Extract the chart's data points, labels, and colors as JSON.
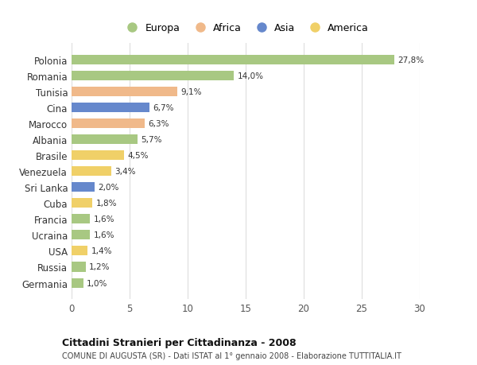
{
  "categories": [
    "Polonia",
    "Romania",
    "Tunisia",
    "Cina",
    "Marocco",
    "Albania",
    "Brasile",
    "Venezuela",
    "Sri Lanka",
    "Cuba",
    "Francia",
    "Ucraina",
    "USA",
    "Russia",
    "Germania"
  ],
  "values": [
    27.8,
    14.0,
    9.1,
    6.7,
    6.3,
    5.7,
    4.5,
    3.4,
    2.0,
    1.8,
    1.6,
    1.6,
    1.4,
    1.2,
    1.0
  ],
  "labels": [
    "27,8%",
    "14,0%",
    "9,1%",
    "6,7%",
    "6,3%",
    "5,7%",
    "4,5%",
    "3,4%",
    "2,0%",
    "1,8%",
    "1,6%",
    "1,6%",
    "1,4%",
    "1,2%",
    "1,0%"
  ],
  "continents": [
    "Europa",
    "Europa",
    "Africa",
    "Asia",
    "Africa",
    "Europa",
    "America",
    "America",
    "Asia",
    "America",
    "Europa",
    "Europa",
    "America",
    "Europa",
    "Europa"
  ],
  "colors": {
    "Europa": "#a8c882",
    "Africa": "#f0b98a",
    "Asia": "#6688cc",
    "America": "#f0d068"
  },
  "legend_labels": [
    "Europa",
    "Africa",
    "Asia",
    "America"
  ],
  "legend_colors": [
    "#a8c882",
    "#f0b98a",
    "#6688cc",
    "#f0d068"
  ],
  "title": "Cittadini Stranieri per Cittadinanza - 2008",
  "subtitle": "COMUNE DI AUGUSTA (SR) - Dati ISTAT al 1° gennaio 2008 - Elaborazione TUTTITALIA.IT",
  "xlim": [
    0,
    30
  ],
  "xticks": [
    0,
    5,
    10,
    15,
    20,
    25,
    30
  ],
  "background_color": "#ffffff",
  "grid_color": "#dddddd",
  "bar_height": 0.6
}
